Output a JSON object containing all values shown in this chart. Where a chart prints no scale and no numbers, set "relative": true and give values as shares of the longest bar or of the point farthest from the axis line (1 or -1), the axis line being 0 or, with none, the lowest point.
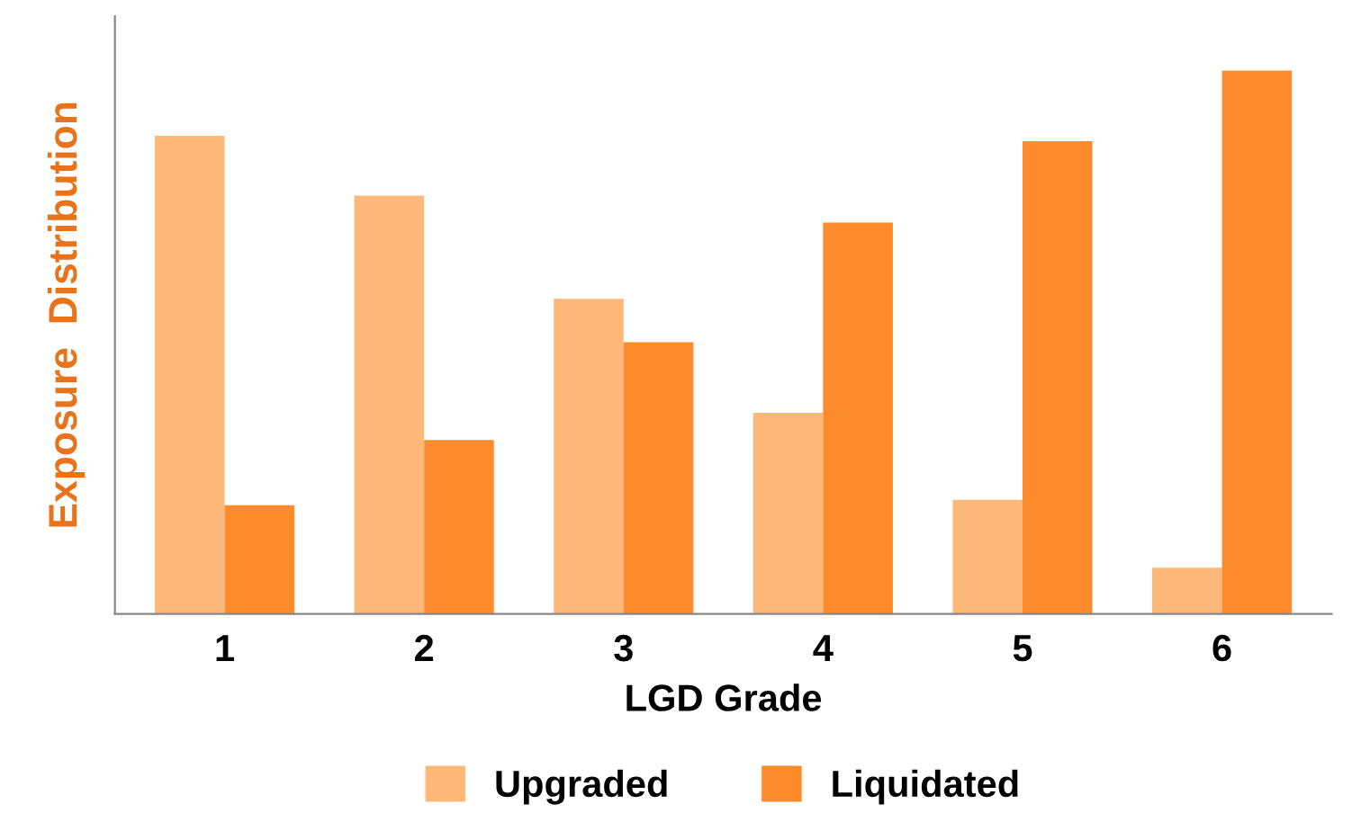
{
  "chart_data": {
    "type": "bar",
    "xlabel": "LGD Grade",
    "ylabel": "Exposure  Distribution",
    "categories": [
      "1",
      "2",
      "3",
      "4",
      "5",
      "6"
    ],
    "relative": true,
    "legend": "bottom",
    "grid": false,
    "series": [
      {
        "name": "Upgraded",
        "color": "#fdb87a",
        "values": [
          0.88,
          0.77,
          0.58,
          0.37,
          0.21,
          0.085
        ]
      },
      {
        "name": "Liquidated",
        "color": "#fd8a2b",
        "values": [
          0.2,
          0.32,
          0.5,
          0.72,
          0.87,
          1.0
        ]
      }
    ]
  }
}
